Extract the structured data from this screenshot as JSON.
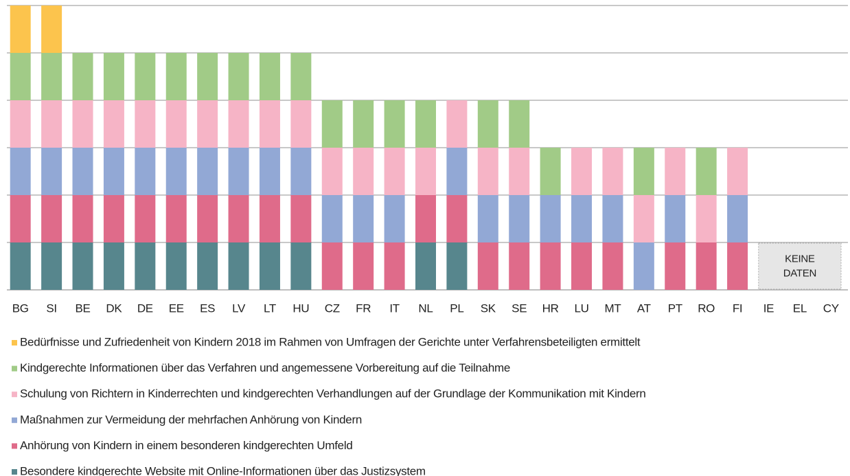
{
  "chart_data": {
    "type": "stacked_bar",
    "categories": [
      "BG",
      "SI",
      "BE",
      "DK",
      "DE",
      "EE",
      "ES",
      "LV",
      "LT",
      "HU",
      "CZ",
      "FR",
      "IT",
      "NL",
      "PL",
      "SK",
      "SE",
      "HR",
      "LU",
      "MT",
      "AT",
      "PT",
      "RO",
      "FI",
      "IE",
      "EL",
      "CY"
    ],
    "series": [
      {
        "name": "Bedürfnisse und Zufriedenheit von Kindern 2018 im Rahmen von Umfragen der Gerichte unter Verfahrensbeteiligten ermittelt",
        "color": "#fcc44d",
        "values": [
          1,
          1,
          0,
          0,
          0,
          0,
          0,
          0,
          0,
          0,
          0,
          0,
          0,
          0,
          0,
          0,
          0,
          0,
          0,
          0,
          0,
          0,
          0,
          0,
          null,
          null,
          null
        ]
      },
      {
        "name": "Kindgerechte Informationen über das Verfahren und angemessene Vorbereitung auf die Teilnahme",
        "color": "#a1cb87",
        "values": [
          1,
          1,
          1,
          1,
          1,
          1,
          1,
          1,
          1,
          1,
          1,
          1,
          1,
          1,
          0,
          1,
          1,
          1,
          0,
          0,
          1,
          0,
          1,
          0,
          null,
          null,
          null
        ]
      },
      {
        "name": "Schulung von Richtern in Kinderrechten und kindgerechten Verhandlungen auf der Grundlage der Kommunikation mit Kindern",
        "color": "#f6b4c6",
        "values": [
          1,
          1,
          1,
          1,
          1,
          1,
          1,
          1,
          1,
          1,
          1,
          1,
          1,
          1,
          1,
          1,
          1,
          0,
          1,
          1,
          1,
          1,
          1,
          1,
          null,
          null,
          null
        ]
      },
      {
        "name": "Maßnahmen zur Vermeidung der mehrfachen Anhörung von Kindern",
        "color": "#92a8d5",
        "values": [
          1,
          1,
          1,
          1,
          1,
          1,
          1,
          1,
          1,
          1,
          1,
          1,
          1,
          0,
          1,
          1,
          1,
          1,
          1,
          1,
          1,
          1,
          0,
          1,
          null,
          null,
          null
        ]
      },
      {
        "name": "Anhörung von Kindern in einem besonderen kindgerechten Umfeld",
        "color": "#df6b8a",
        "values": [
          1,
          1,
          1,
          1,
          1,
          1,
          1,
          1,
          1,
          1,
          1,
          1,
          1,
          1,
          1,
          1,
          1,
          1,
          1,
          1,
          0,
          1,
          1,
          1,
          null,
          null,
          null
        ]
      },
      {
        "name": "Besondere kindgerechte Website mit Online-Informationen über das Justizsystem",
        "color": "#57868d",
        "values": [
          1,
          1,
          1,
          1,
          1,
          1,
          1,
          1,
          1,
          1,
          0,
          0,
          0,
          1,
          1,
          0,
          0,
          0,
          0,
          0,
          0,
          0,
          0,
          0,
          null,
          null,
          null
        ]
      }
    ],
    "annotation": [
      "KEINE",
      "DATEN"
    ],
    "ylim": [
      0,
      6
    ],
    "yticks": [
      0,
      1,
      2,
      3,
      4,
      5,
      6
    ],
    "grid": true,
    "legend": "bottom"
  }
}
